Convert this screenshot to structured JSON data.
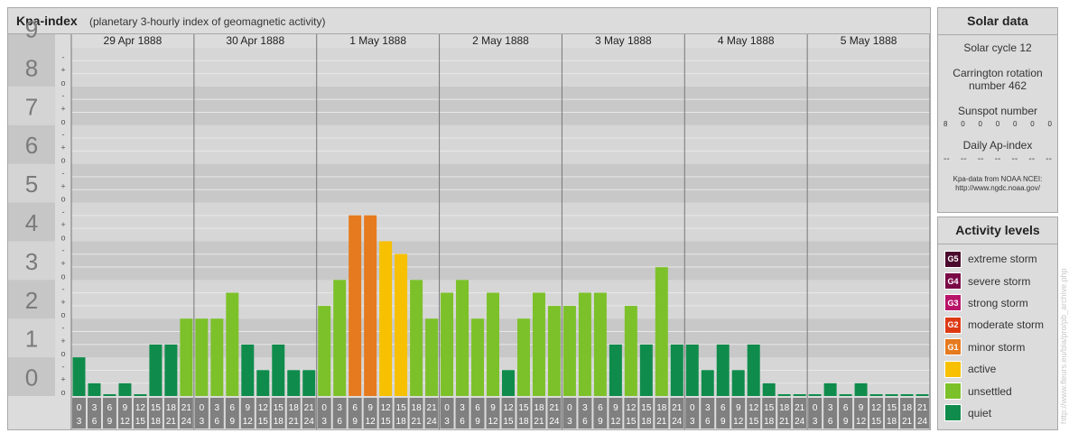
{
  "header": {
    "title": "Kpa-index",
    "subtitle": "(planetary 3-hourly index of geomagnetic activity)"
  },
  "chart_data": {
    "type": "bar",
    "title": "Kpa-index",
    "subtitle": "(planetary 3-hourly index of geomagnetic activity)",
    "ylim": [
      0,
      9
    ],
    "yticks": [
      "0",
      "1",
      "2",
      "3",
      "4",
      "5",
      "6",
      "7",
      "8",
      "9"
    ],
    "minor_ticks": [
      "o",
      "+",
      "-"
    ],
    "days": [
      "29 Apr 1888",
      "30 Apr 1888",
      "1 May 1888",
      "2 May 1888",
      "3 May 1888",
      "4 May 1888",
      "5 May 1888"
    ],
    "interval_labels": [
      [
        "0",
        "3"
      ],
      [
        "3",
        "6"
      ],
      [
        "6",
        "9"
      ],
      [
        "9",
        "12"
      ],
      [
        "12",
        "15"
      ],
      [
        "15",
        "18"
      ],
      [
        "18",
        "21"
      ],
      [
        "21",
        "24"
      ]
    ],
    "values": [
      1.0,
      0.33,
      0,
      0.33,
      0,
      1.33,
      1.33,
      2.0,
      2.0,
      2.0,
      2.67,
      1.33,
      0.67,
      1.33,
      0.67,
      0.67,
      2.33,
      3.0,
      4.67,
      4.67,
      4.0,
      3.67,
      3.0,
      2.0,
      2.67,
      3.0,
      2.0,
      2.67,
      0.67,
      2.0,
      2.67,
      2.33,
      2.33,
      2.67,
      2.67,
      1.33,
      2.33,
      1.33,
      3.33,
      1.33,
      1.33,
      0.67,
      1.33,
      0.67,
      1.33,
      0.33,
      0,
      0,
      0,
      0.33,
      0,
      0.33,
      0,
      0,
      0,
      0
    ],
    "levels": [
      {
        "code": "G5",
        "name": "extreme storm",
        "color": "#4b0a2d"
      },
      {
        "code": "G4",
        "name": "severe storm",
        "color": "#7a0a46"
      },
      {
        "code": "G3",
        "name": "strong storm",
        "color": "#b8146a"
      },
      {
        "code": "G2",
        "name": "moderate storm",
        "color": "#dd3a14"
      },
      {
        "code": "G1",
        "name": "minor storm",
        "color": "#e67a1e"
      },
      {
        "code": "",
        "name": "active",
        "color": "#f7c000"
      },
      {
        "code": "",
        "name": "unsettled",
        "color": "#7cc129"
      },
      {
        "code": "",
        "name": "quiet",
        "color": "#0f8c4b"
      }
    ]
  },
  "solar": {
    "title": "Solar data",
    "cycle": "Solar cycle 12",
    "carrington_line1": "Carrington rotation",
    "carrington_line2": "number 462",
    "sunspot_label": "Sunspot number",
    "sunspot_values": [
      "8",
      "0",
      "0",
      "0",
      "0",
      "0",
      "0"
    ],
    "ap_label": "Daily Ap-index",
    "ap_values": [
      "--",
      "--",
      "--",
      "--",
      "--",
      "--",
      "--"
    ],
    "source_line1": "Kpa-data from NOAA NCEI:",
    "source_line2": "http://www.ngdc.noaa.gov/"
  },
  "activity": {
    "title": "Activity levels"
  },
  "watermark": "http://www.fleurs.eu/bla/pro/pb_archive.php"
}
